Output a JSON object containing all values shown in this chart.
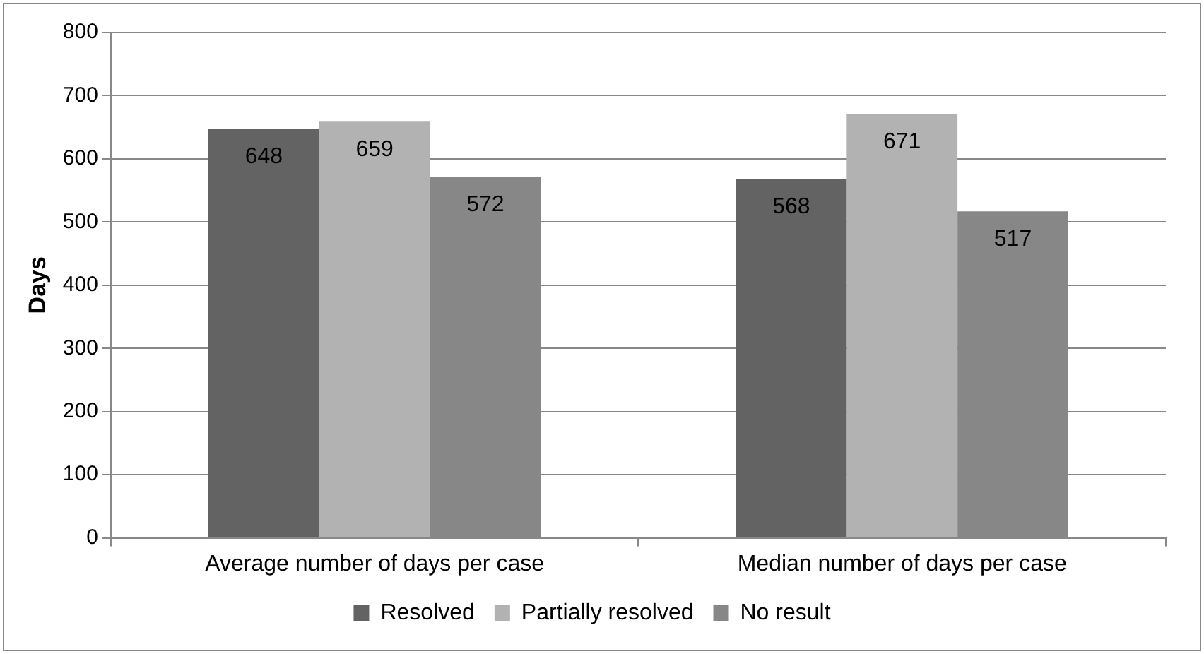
{
  "chart_data": {
    "type": "bar",
    "ylabel": "Days",
    "categories": [
      "Average number of days per case",
      "Median number of days per case"
    ],
    "series": [
      {
        "name": "Resolved",
        "color": "#636363",
        "values": [
          648,
          568
        ]
      },
      {
        "name": "Partially resolved",
        "color": "#b2b2b2",
        "values": [
          659,
          671
        ]
      },
      {
        "name": "No result",
        "color": "#878787",
        "values": [
          572,
          517
        ]
      }
    ],
    "ylim": [
      0,
      800
    ],
    "yticks": [
      0,
      100,
      200,
      300,
      400,
      500,
      600,
      700,
      800
    ],
    "grid": "y",
    "legend": "bottom",
    "data_labels": true
  }
}
